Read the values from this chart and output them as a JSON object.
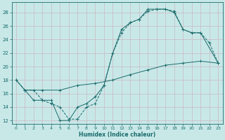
{
  "xlabel": "Humidex (Indice chaleur)",
  "bg_color": "#c8e8e8",
  "grid_color": "#d0d0d0",
  "line_color": "#1a6b6b",
  "xlim": [
    -0.5,
    23.5
  ],
  "ylim": [
    11.5,
    29.5
  ],
  "xticks": [
    0,
    1,
    2,
    3,
    4,
    5,
    6,
    7,
    8,
    9,
    10,
    11,
    12,
    13,
    14,
    15,
    16,
    17,
    18,
    19,
    20,
    21,
    22,
    23
  ],
  "yticks": [
    12,
    14,
    16,
    18,
    20,
    22,
    24,
    26,
    28
  ],
  "line1_x": [
    0,
    1,
    2,
    3,
    4,
    5,
    6,
    7,
    8,
    9,
    10,
    11,
    12,
    13,
    14,
    15,
    16,
    17,
    18,
    19,
    20,
    21,
    22,
    23
  ],
  "line1_y": [
    18,
    16.5,
    16.5,
    15,
    14.5,
    14.0,
    12.2,
    12.2,
    14,
    14.5,
    17.2,
    22,
    25,
    26.5,
    27,
    28.2,
    28.5,
    28.5,
    28.2,
    25.5,
    25,
    25,
    23.5,
    20.5
  ],
  "line2_x": [
    0,
    1,
    3,
    5,
    7,
    9,
    11,
    13,
    15,
    17,
    19,
    21,
    23
  ],
  "line2_y": [
    18,
    16.5,
    16.5,
    16.5,
    17.2,
    17.5,
    18.0,
    18.8,
    19.5,
    20.2,
    20.5,
    20.8,
    20.5
  ],
  "line3_x": [
    1,
    2,
    3,
    4,
    5,
    6,
    7,
    8,
    9,
    10,
    11,
    12,
    13,
    14,
    15,
    16,
    17,
    18,
    19,
    20,
    21,
    23
  ],
  "line3_y": [
    16.5,
    15.0,
    15.0,
    15.0,
    12.0,
    12.0,
    14.0,
    14.5,
    15.5,
    17.2,
    22.0,
    25.5,
    26.5,
    27.0,
    28.5,
    28.5,
    28.5,
    28.0,
    25.5,
    25.0,
    25.0,
    20.5
  ]
}
